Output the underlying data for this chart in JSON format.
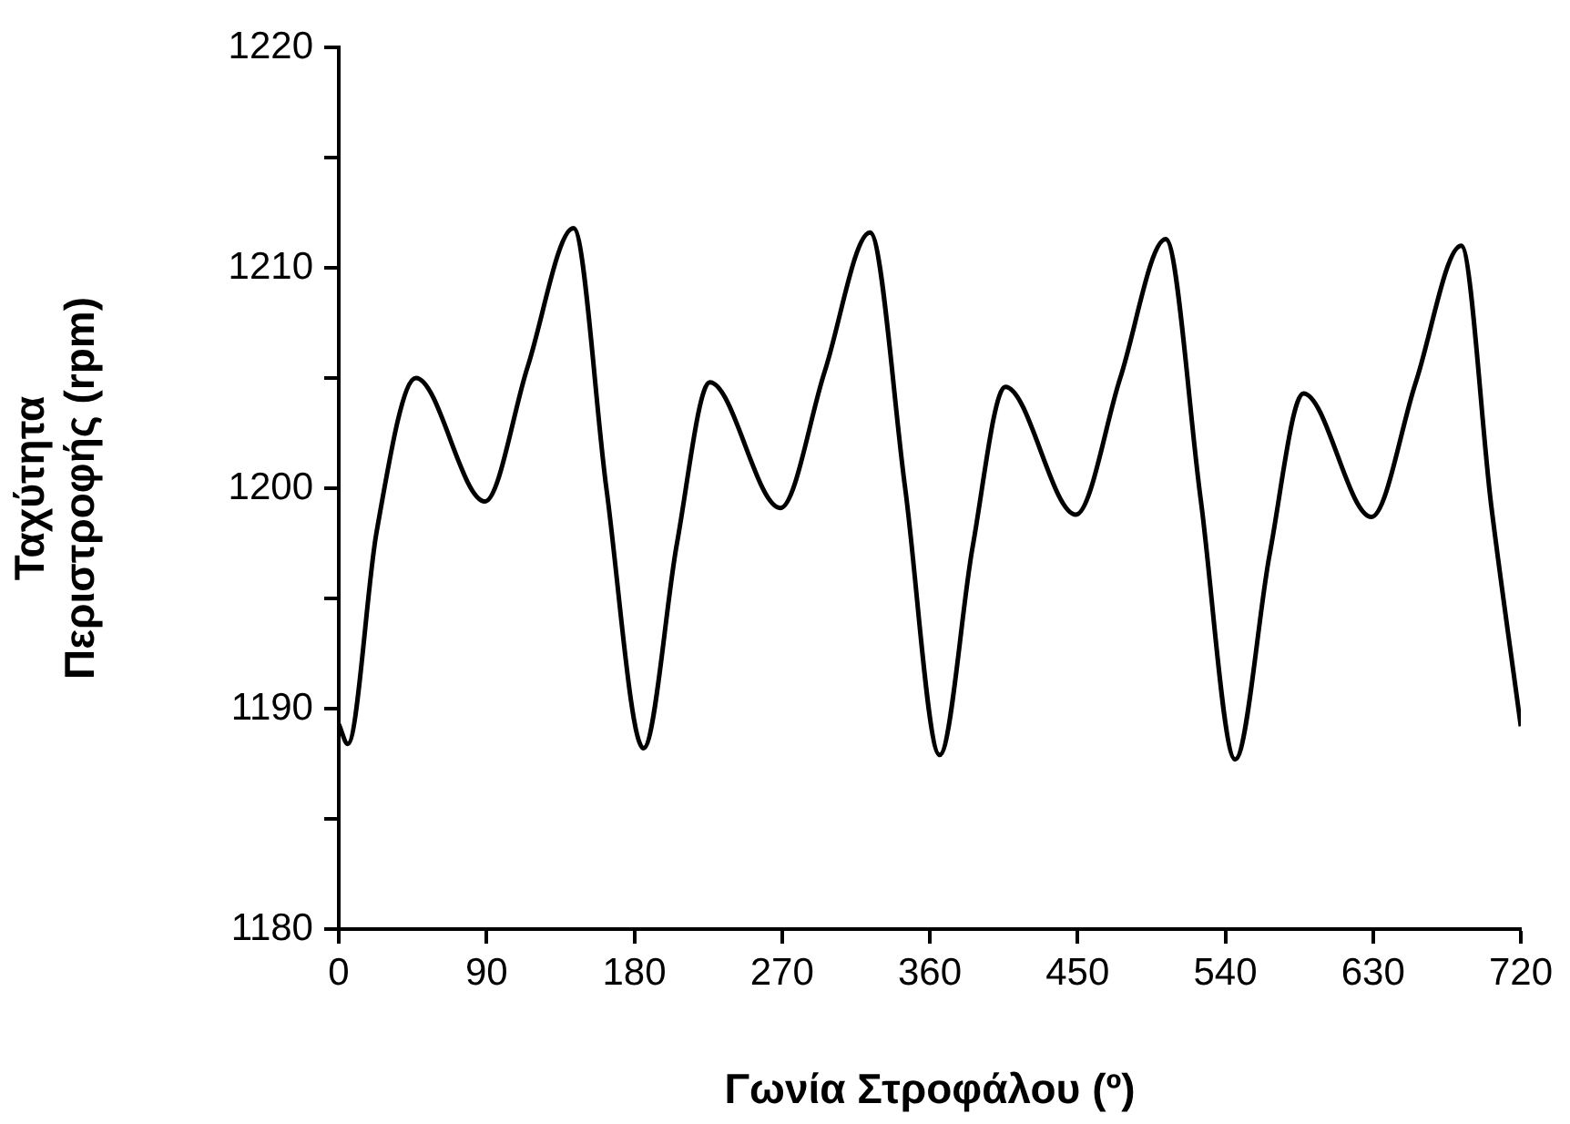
{
  "chart_data": {
    "type": "line",
    "xlabel": "Γωνία Στροφάλου (º)",
    "ylabel": "Ταχύτητα\nΠεριστροφής (rpm)",
    "x": [
      0,
      5.5,
      23,
      47,
      89,
      115,
      143,
      163,
      185.6,
      206,
      226,
      269,
      296,
      323.6,
      345,
      366,
      386,
      406,
      449,
      476,
      503.7,
      525,
      546,
      567,
      587.6,
      629,
      656,
      683.7,
      702,
      720
    ],
    "series": [
      {
        "color": "#000000",
        "values": [
          1189.3,
          1188.4,
          1198,
          1205,
          1199.4,
          1205.5,
          1211.8,
          1200,
          1188.2,
          1197.5,
          1204.8,
          1199.1,
          1205.3,
          1211.6,
          1200,
          1187.9,
          1197.3,
          1204.6,
          1198.8,
          1205,
          1211.3,
          1199.5,
          1187.7,
          1197,
          1204.3,
          1198.7,
          1204.8,
          1211,
          1199.2,
          1189.2
        ]
      }
    ],
    "xlim": [
      0,
      720
    ],
    "xticks": [
      0,
      90,
      180,
      270,
      360,
      450,
      540,
      630,
      720
    ],
    "ylim": [
      1180,
      1220
    ],
    "yticks": [
      1180,
      {
        "value": 1185,
        "label": null
      },
      1190,
      {
        "value": 1195,
        "label": null
      },
      1200,
      {
        "value": 1205,
        "label": null
      },
      1210,
      {
        "value": 1215,
        "label": null
      },
      1220
    ],
    "grid": false,
    "legend": false,
    "marker": "none",
    "line_style": "solid"
  }
}
